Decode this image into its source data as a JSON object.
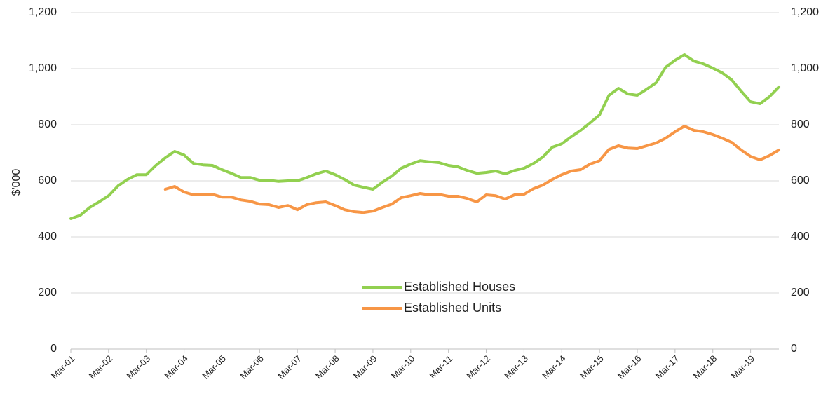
{
  "chart_data": {
    "type": "line",
    "y_label": "$'000",
    "categories": [
      "Mar-01",
      null,
      null,
      null,
      "Mar-02",
      null,
      null,
      null,
      "Mar-03",
      null,
      null,
      null,
      "Mar-04",
      null,
      null,
      null,
      "Mar-05",
      null,
      null,
      null,
      "Mar-06",
      null,
      null,
      null,
      "Mar-07",
      null,
      null,
      null,
      "Mar-08",
      null,
      null,
      null,
      "Mar-09",
      null,
      null,
      null,
      "Mar-10",
      null,
      null,
      null,
      "Mar-11",
      null,
      null,
      null,
      "Mar-12",
      null,
      null,
      null,
      "Mar-13",
      null,
      null,
      null,
      "Mar-14",
      null,
      null,
      null,
      "Mar-15",
      null,
      null,
      null,
      "Mar-16",
      null,
      null,
      null,
      "Mar-17",
      null,
      null,
      null,
      "Mar-18",
      null,
      null,
      null,
      "Mar-19",
      null,
      null,
      null
    ],
    "series": [
      {
        "name": "Established Houses",
        "color": "#92d050",
        "values": [
          465,
          477,
          505,
          525,
          547,
          582,
          605,
          622,
          622,
          655,
          682,
          705,
          692,
          662,
          657,
          655,
          640,
          627,
          612,
          612,
          602,
          602,
          598,
          600,
          600,
          612,
          625,
          635,
          622,
          605,
          585,
          577,
          570,
          595,
          617,
          645,
          660,
          672,
          668,
          665,
          655,
          650,
          637,
          627,
          630,
          635,
          625,
          637,
          645,
          662,
          685,
          720,
          732,
          757,
          780,
          807,
          835,
          905,
          930,
          910,
          905,
          927,
          950,
          1005,
          1030,
          1050,
          1027,
          1017,
          1002,
          985,
          960,
          920,
          882,
          875,
          900,
          935
        ]
      },
      {
        "name": "Established Units",
        "color": "#f79646",
        "values": [
          null,
          null,
          null,
          null,
          null,
          null,
          null,
          null,
          null,
          null,
          570,
          580,
          560,
          550,
          550,
          552,
          542,
          542,
          532,
          527,
          517,
          515,
          505,
          512,
          497,
          515,
          522,
          525,
          512,
          497,
          490,
          487,
          492,
          505,
          517,
          540,
          547,
          555,
          550,
          552,
          545,
          545,
          537,
          525,
          550,
          547,
          535,
          550,
          552,
          572,
          585,
          605,
          622,
          635,
          640,
          660,
          672,
          712,
          725,
          717,
          715,
          725,
          735,
          752,
          775,
          795,
          780,
          775,
          765,
          752,
          737,
          710,
          687,
          675,
          690,
          710
        ]
      }
    ],
    "ylim": [
      0,
      1200
    ],
    "yticks": [
      0,
      200,
      400,
      600,
      800,
      {
        "value": 1000,
        "label": "1,000"
      },
      {
        "value": 1200,
        "label": "1,200"
      }
    ],
    "y2lim": [
      0,
      1200
    ],
    "y2ticks": [
      0,
      200,
      400,
      600,
      800,
      {
        "value": 1000,
        "label": "1,000"
      },
      {
        "value": 1200,
        "label": "1,200"
      }
    ],
    "grid": true
  }
}
